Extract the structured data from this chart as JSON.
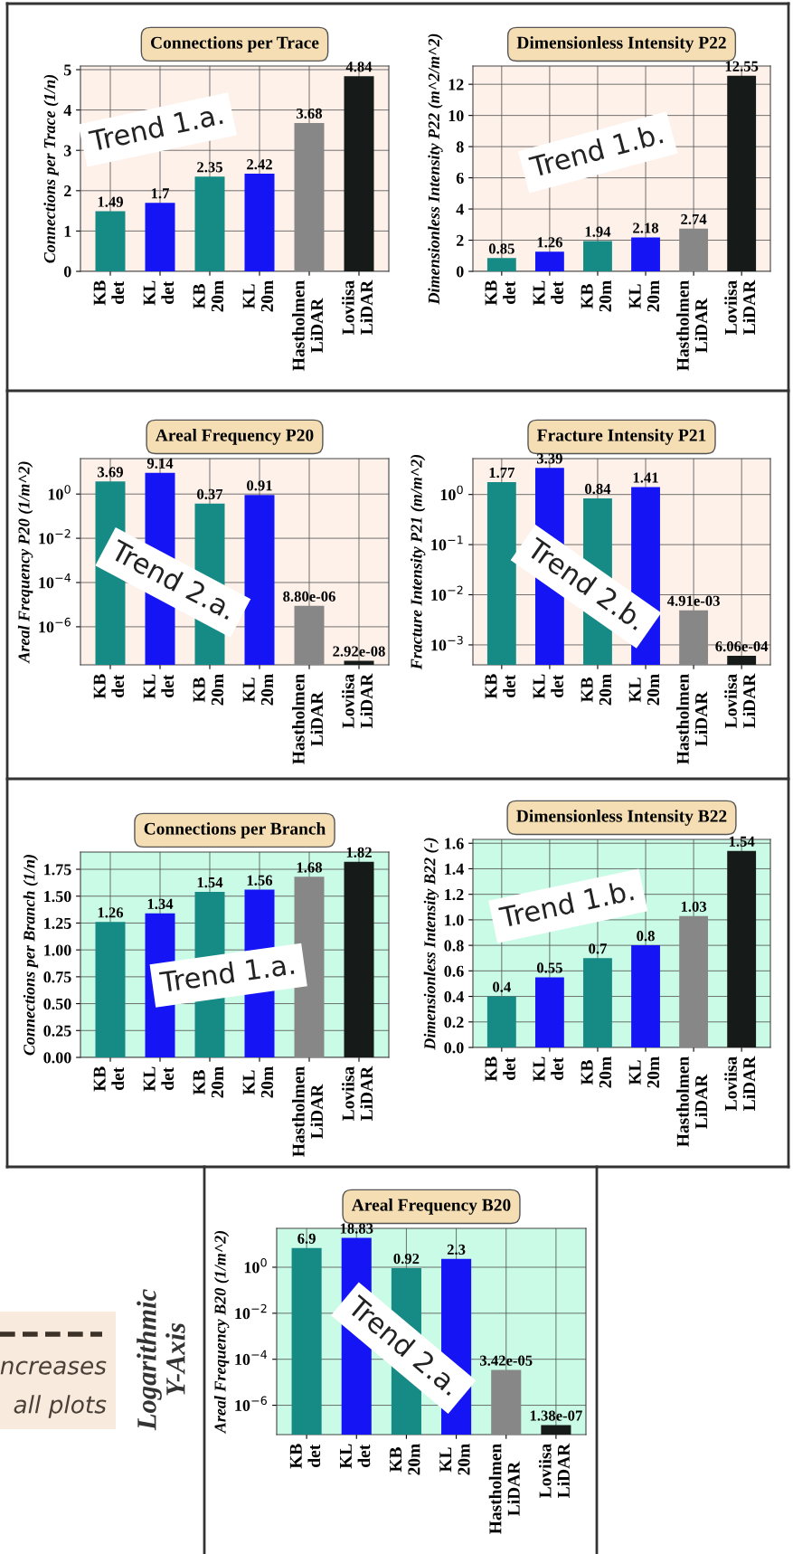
{
  "chart_data": [
    {
      "type": "bar",
      "title": "Connections per Trace",
      "ylabel": "Connections per Trace (1/n)",
      "categories": [
        "KB\ndet",
        "KL\ndet",
        "KB\n20m",
        "KL\n20m",
        "Hastholmen\nLiDAR",
        "Loviisa\nLiDAR"
      ],
      "values": [
        1.49,
        1.7,
        2.35,
        2.42,
        3.68,
        4.84
      ],
      "colors": [
        "#168a84",
        "#1414f5",
        "#168a84",
        "#1414f5",
        "#878787",
        "#161a18"
      ],
      "data_labels": true,
      "ylim": [
        0,
        5.09
      ],
      "yticks": [
        0,
        1,
        2,
        3,
        4,
        5
      ],
      "grid": true,
      "annotations": [
        "Trend 1.a."
      ]
    },
    {
      "type": "bar",
      "title": "Dimensionless Intensity P22",
      "ylabel": "Dimensionless Intensity P22 (m^2/m^2)",
      "categories": [
        "KB\ndet",
        "KL\ndet",
        "KB\n20m",
        "KL\n20m",
        "Hastholmen\nLiDAR",
        "Loviisa\nLiDAR"
      ],
      "values": [
        0.85,
        1.26,
        1.94,
        2.18,
        2.74,
        12.55
      ],
      "colors": [
        "#168a84",
        "#1414f5",
        "#168a84",
        "#1414f5",
        "#878787",
        "#161a18"
      ],
      "data_labels": true,
      "ylim": [
        0,
        13.17
      ],
      "yticks": [
        0,
        2,
        4,
        6,
        8,
        10,
        12
      ],
      "grid": true,
      "annotations": [
        "Trend 1.b."
      ]
    },
    {
      "type": "bar",
      "title": "Areal Frequency P20",
      "ylabel": "Areal Frequency P20 (1/m^2)",
      "categories": [
        "KB\ndet",
        "KL\ndet",
        "KB\n20m",
        "KL\n20m",
        "Hastholmen\nLiDAR",
        "Loviisa\nLiDAR"
      ],
      "values": [
        3.69,
        9.14,
        0.37,
        0.91,
        8.8e-06,
        2.92e-08
      ],
      "value_labels": [
        "3.69",
        "9.14",
        "0.37",
        "0.91",
        "8.80e-06",
        "2.92e-08"
      ],
      "colors": [
        "#168a84",
        "#1414f5",
        "#168a84",
        "#1414f5",
        "#878787",
        "#161a18"
      ],
      "log": "y",
      "ylim": [
        1.9e-08,
        40
      ],
      "yticks": [
        {
          "value": 1e-06,
          "label": "10$^{−6}$"
        },
        {
          "value": 0.0001,
          "label": "10$^{−4}$"
        },
        {
          "value": 0.01,
          "label": "10$^{−2}$"
        },
        {
          "value": 1,
          "label": "10$^{0}$"
        }
      ],
      "grid": true,
      "annotations": [
        "Trend 2.a."
      ]
    },
    {
      "type": "bar",
      "title": "Fracture Intensity P21",
      "ylabel": "Fracture Intensity P21 (m/m^2)",
      "categories": [
        "KB\ndet",
        "KL\ndet",
        "KB\n20m",
        "KL\n20m",
        "Hastholmen\nLiDAR",
        "Loviisa\nLiDAR"
      ],
      "values": [
        1.77,
        3.39,
        0.84,
        1.41,
        0.00491,
        0.000606
      ],
      "value_labels": [
        "1.77",
        "3.39",
        "0.84",
        "1.41",
        "4.91e-03",
        "6.06e-04"
      ],
      "colors": [
        "#168a84",
        "#1414f5",
        "#168a84",
        "#1414f5",
        "#878787",
        "#161a18"
      ],
      "log": "y",
      "ylim": [
        0.0004,
        5.2
      ],
      "yticks": [
        {
          "value": 0.001,
          "label": "10$^{−3}$"
        },
        {
          "value": 0.01,
          "label": "10$^{−2}$"
        },
        {
          "value": 0.1,
          "label": "10$^{−1}$"
        },
        {
          "value": 1,
          "label": "10$^{0}$"
        }
      ],
      "grid": true,
      "annotations": [
        "Trend 2.b."
      ]
    },
    {
      "type": "bar",
      "title": "Connections per Branch",
      "ylabel": "Connections per Branch (1/n)",
      "categories": [
        "KB\ndet",
        "KL\ndet",
        "KB\n20m",
        "KL\n20m",
        "Hastholmen\nLiDAR",
        "Loviisa\nLiDAR"
      ],
      "values": [
        1.26,
        1.34,
        1.54,
        1.56,
        1.68,
        1.82
      ],
      "colors": [
        "#168a84",
        "#1414f5",
        "#168a84",
        "#1414f5",
        "#878787",
        "#161a18"
      ],
      "data_labels": true,
      "ylim": [
        0,
        1.91
      ],
      "yticks": [
        {
          "value": 0,
          "label": "0.00"
        },
        {
          "value": 0.25,
          "label": "0.25"
        },
        {
          "value": 0.5,
          "label": "0.50"
        },
        {
          "value": 0.75,
          "label": "0.75"
        },
        {
          "value": 1,
          "label": "1.00"
        },
        {
          "value": 1.25,
          "label": "1.25"
        },
        {
          "value": 1.5,
          "label": "1.50"
        },
        {
          "value": 1.75,
          "label": "1.75"
        }
      ],
      "grid": true,
      "annotations": [
        "Trend 1.a."
      ]
    },
    {
      "type": "bar",
      "title": "Dimensionless Intensity B22",
      "ylabel": "Dimensionless Intensity B22 (-)",
      "categories": [
        "KB\ndet",
        "KL\ndet",
        "KB\n20m",
        "KL\n20m",
        "Hastholmen\nLiDAR",
        "Loviisa\nLiDAR"
      ],
      "values": [
        0.4,
        0.55,
        0.7,
        0.8,
        1.03,
        1.54
      ],
      "colors": [
        "#168a84",
        "#1414f5",
        "#168a84",
        "#1414f5",
        "#878787",
        "#161a18"
      ],
      "data_labels": true,
      "ylim": [
        0,
        1.63
      ],
      "yticks": [
        {
          "value": 0,
          "label": "0.0"
        },
        {
          "value": 0.2,
          "label": "0.2"
        },
        {
          "value": 0.4,
          "label": "0.4"
        },
        {
          "value": 0.6,
          "label": "0.6"
        },
        {
          "value": 0.8,
          "label": "0.8"
        },
        {
          "value": 1,
          "label": "1.0"
        },
        {
          "value": 1.2,
          "label": "1.2"
        },
        {
          "value": 1.4,
          "label": "1.4"
        },
        {
          "value": 1.6,
          "label": "1.6"
        }
      ],
      "grid": true,
      "annotations": [
        "Trend 1.b."
      ]
    },
    {
      "type": "bar",
      "title": "Areal Frequency B20",
      "ylabel": "Areal Frequency B20 (1/m^2)",
      "categories": [
        "KB\ndet",
        "KL\ndet",
        "KB\n20m",
        "KL\n20m",
        "Hastholmen\nLiDAR",
        "Loviisa\nLiDAR"
      ],
      "values": [
        6.9,
        18.83,
        0.92,
        2.3,
        3.42e-05,
        1.38e-07
      ],
      "value_labels": [
        "6.9",
        "18.83",
        "0.92",
        "2.3",
        "3.42e-05",
        "1.38e-07"
      ],
      "colors": [
        "#168a84",
        "#1414f5",
        "#168a84",
        "#1414f5",
        "#878787",
        "#161a18"
      ],
      "log": "y",
      "ylim": [
        5.3e-08,
        49
      ],
      "yticks": [
        {
          "value": 1e-06,
          "label": "10$^{−6}$"
        },
        {
          "value": 0.0001,
          "label": "10$^{−4}$"
        },
        {
          "value": 0.01,
          "label": "10$^{−2}$"
        },
        {
          "value": 1,
          "label": "10$^{0}$"
        }
      ],
      "grid": true,
      "annotations": [
        "Trend 2.a.",
        "Logarithmic\nY-Axis",
        "ncreases",
        "all plots"
      ]
    }
  ]
}
